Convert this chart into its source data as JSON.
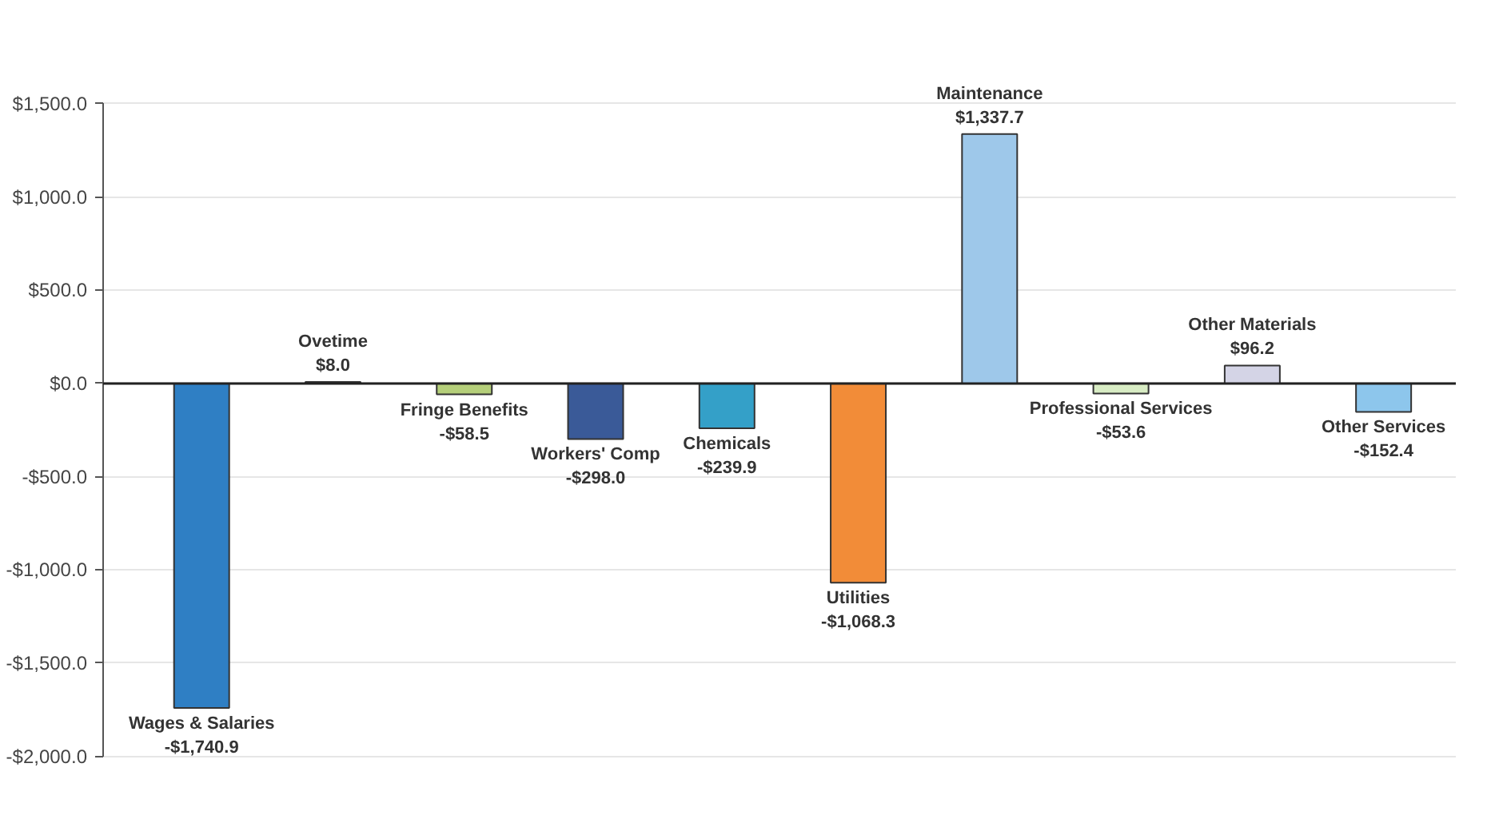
{
  "chart_data": {
    "type": "bar",
    "categories": [
      "Wages & Salaries",
      "Ovetime",
      "Fringe Benefits",
      "Workers' Comp",
      "Chemicals",
      "Utilities",
      "Maintenance",
      "Professional Services",
      "Other Materials",
      "Other Services"
    ],
    "values": [
      -1740.9,
      8.0,
      -58.5,
      -298.0,
      -239.9,
      -1068.3,
      1337.7,
      -53.6,
      96.2,
      -152.4
    ],
    "colors": [
      "#2f7fc4",
      "#8a9a3a",
      "#b5cf7a",
      "#3a5a98",
      "#34a0c8",
      "#f28c38",
      "#9ec8ea",
      "#d8ecc4",
      "#d4d4e6",
      "#8dc6ec"
    ],
    "value_labels": [
      "-$1,740.9",
      "$8.0",
      "-$58.5",
      "-$298.0",
      "-$239.9",
      "-$1,068.3",
      "$1,337.7",
      "-$53.6",
      "$96.2",
      "-$152.4"
    ],
    "ylim": [
      -2000,
      1500
    ],
    "yticks": [
      {
        "value": -2000,
        "label": "-$2,000.0"
      },
      {
        "value": -1500,
        "label": "-$1,500.0"
      },
      {
        "value": -1000,
        "label": "-$1,000.0"
      },
      {
        "value": -500,
        "label": "-$500.0"
      },
      {
        "value": 0,
        "label": "$0.0"
      },
      {
        "value": 500,
        "label": "$500.0"
      },
      {
        "value": 1000,
        "label": "$1,000.0"
      },
      {
        "value": 1500,
        "label": "$1,500.0"
      }
    ],
    "grid": "y"
  }
}
